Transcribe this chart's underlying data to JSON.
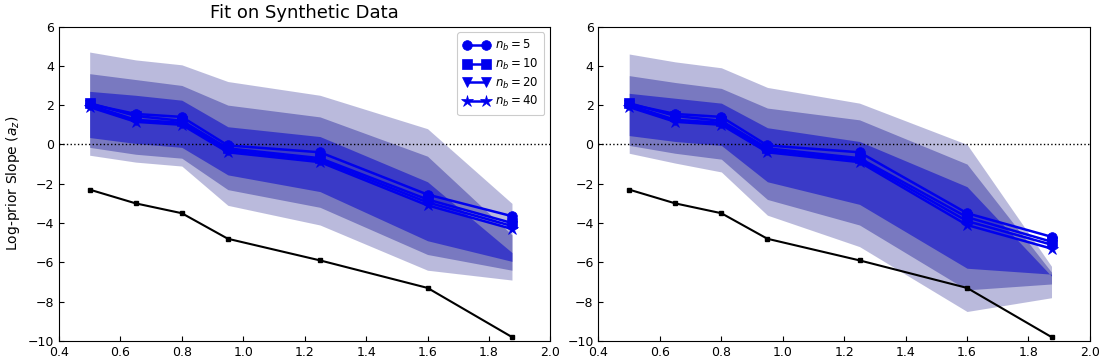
{
  "title": "Fit on Synthetic Data",
  "ylabel": "Log-prior Slope ($a_z$)",
  "xlim": [
    0.4,
    2.0
  ],
  "ylim": [
    -10,
    6
  ],
  "xticks": [
    0.4,
    0.6,
    0.8,
    1.0,
    1.2,
    1.4,
    1.6,
    1.8,
    2.0
  ],
  "yticks": [
    -10,
    -8,
    -6,
    -4,
    -2,
    0,
    2,
    4,
    6
  ],
  "x": [
    0.5,
    0.65,
    0.8,
    0.95,
    1.25,
    1.6,
    1.875
  ],
  "lines_left": {
    "n5": [
      2.05,
      1.55,
      1.4,
      -0.05,
      -0.4,
      -2.55,
      -3.65
    ],
    "n10": [
      2.1,
      1.45,
      1.2,
      -0.2,
      -0.7,
      -2.8,
      -4.0
    ],
    "n20": [
      2.0,
      1.25,
      1.1,
      -0.3,
      -0.8,
      -2.95,
      -4.15
    ],
    "n40": [
      1.9,
      1.15,
      1.0,
      -0.4,
      -0.9,
      -3.1,
      -4.3
    ]
  },
  "lines_right": {
    "n5": [
      2.05,
      1.55,
      1.4,
      -0.05,
      -0.4,
      -3.5,
      -4.7
    ],
    "n10": [
      2.1,
      1.45,
      1.2,
      -0.2,
      -0.7,
      -3.7,
      -4.95
    ],
    "n20": [
      2.0,
      1.25,
      1.1,
      -0.3,
      -0.8,
      -3.9,
      -5.1
    ],
    "n40": [
      1.9,
      1.15,
      1.0,
      -0.4,
      -0.9,
      -4.1,
      -5.3
    ]
  },
  "black_line_left": [
    -2.3,
    -3.0,
    -3.5,
    -4.8,
    -5.9,
    -7.3,
    -9.8
  ],
  "black_line_right": [
    -2.3,
    -3.0,
    -3.5,
    -4.8,
    -5.9,
    -7.3,
    -9.8
  ],
  "bands_left": {
    "outer": {
      "upper": [
        4.7,
        4.3,
        4.05,
        3.2,
        2.5,
        0.8,
        -3.0
      ],
      "lower": [
        -0.55,
        -0.9,
        -1.1,
        -3.1,
        -4.1,
        -6.4,
        -6.9
      ]
    },
    "mid": {
      "upper": [
        3.6,
        3.3,
        3.0,
        2.0,
        1.4,
        -0.6,
        -4.6
      ],
      "lower": [
        -0.15,
        -0.5,
        -0.7,
        -2.3,
        -3.2,
        -5.6,
        -6.4
      ]
    },
    "inner": {
      "upper": [
        2.7,
        2.5,
        2.25,
        0.9,
        0.4,
        -1.9,
        -5.5
      ],
      "lower": [
        0.35,
        0.05,
        -0.15,
        -1.55,
        -2.4,
        -4.9,
        -5.95
      ]
    }
  },
  "bands_right": {
    "outer": {
      "upper": [
        4.6,
        4.2,
        3.9,
        2.9,
        2.1,
        0.0,
        -6.2
      ],
      "lower": [
        -0.45,
        -0.95,
        -1.4,
        -3.6,
        -5.2,
        -8.5,
        -7.8
      ]
    },
    "mid": {
      "upper": [
        3.5,
        3.15,
        2.85,
        1.85,
        1.25,
        -1.0,
        -6.5
      ],
      "lower": [
        -0.05,
        -0.45,
        -0.75,
        -2.8,
        -4.1,
        -7.4,
        -7.1
      ]
    },
    "inner": {
      "upper": [
        2.6,
        2.35,
        2.1,
        0.85,
        0.15,
        -2.15,
        -6.7
      ],
      "lower": [
        0.45,
        0.15,
        -0.05,
        -1.9,
        -3.05,
        -6.3,
        -6.6
      ]
    }
  },
  "color_outer": "#7777bb",
  "color_mid": "#4444aa",
  "color_inner": "#1111cc",
  "color_line": "#0000ee",
  "color_black": "#000000",
  "legend_labels": [
    "$n_b = 5$",
    "$n_b = 10$",
    "$n_b = 20$",
    "$n_b = 40$"
  ],
  "markers": [
    "o",
    "s",
    "v",
    "*"
  ]
}
